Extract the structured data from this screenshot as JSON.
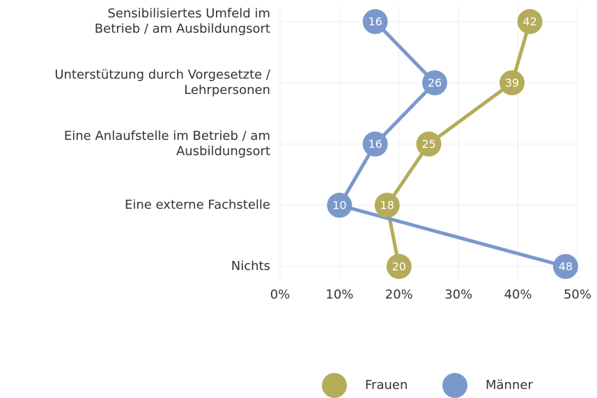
{
  "chart_data": {
    "type": "line",
    "orientation": "horizontal",
    "categories": [
      "Sensibilisiertes Umfeld im\nBetrieb / am Ausbildungsort",
      "Unterstützung durch Vorgesetzte /\nLehrpersonen",
      "Eine Anlaufstelle im Betrieb / am\nAusbildungsort",
      "Eine externe Fachstelle",
      "Nichts"
    ],
    "series": [
      {
        "name": "Frauen",
        "color": "#b5ac5a",
        "values": [
          42,
          39,
          25,
          18,
          20
        ]
      },
      {
        "name": "Männer",
        "color": "#7b98cc",
        "values": [
          16,
          26,
          16,
          10,
          48
        ]
      }
    ],
    "xlim": [
      0,
      50
    ],
    "xticks": [
      {
        "value": 0,
        "label": "0%"
      },
      {
        "value": 10,
        "label": "10%"
      },
      {
        "value": 20,
        "label": "20%"
      },
      {
        "value": 30,
        "label": "30%"
      },
      {
        "value": 40,
        "label": "40%"
      },
      {
        "value": 50,
        "label": "50%"
      }
    ],
    "grid": true,
    "legend": "bottom"
  }
}
